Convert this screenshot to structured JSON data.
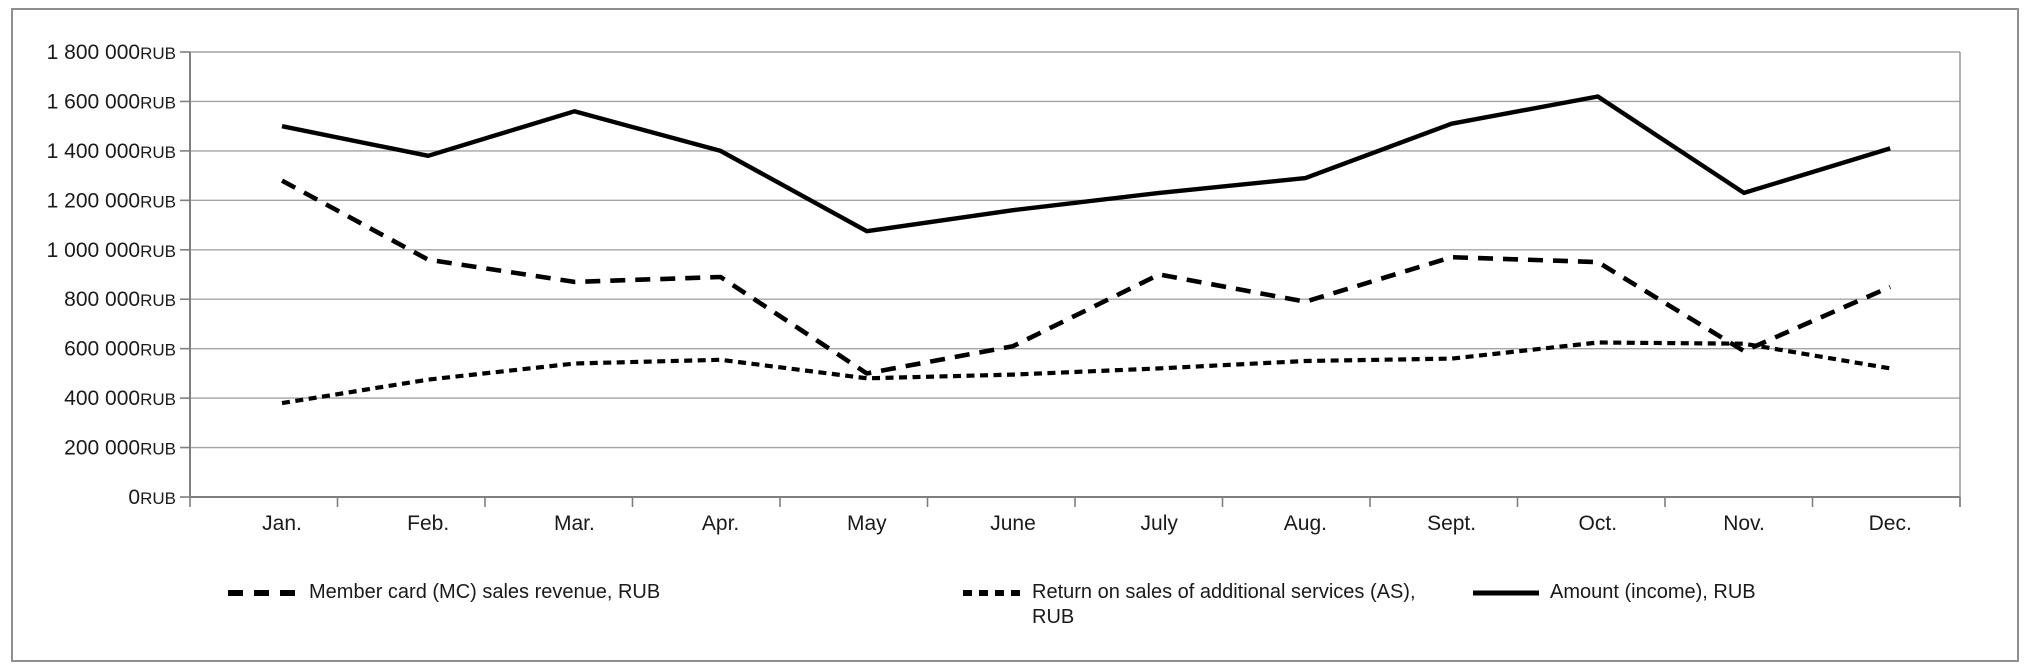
{
  "chart_data": {
    "type": "line",
    "title": "",
    "xlabel": "",
    "ylabel": "",
    "unit_suffix": "RUB",
    "grid": true,
    "legend_position": "bottom",
    "ylim": [
      0,
      1800000
    ],
    "y_tick_step": 200000,
    "y_ticks": [
      0,
      200000,
      400000,
      600000,
      800000,
      1000000,
      1200000,
      1400000,
      1600000,
      1800000
    ],
    "y_tick_labels": [
      "0RUB",
      "200 000RUB",
      "400 000RUB",
      "600 000RUB",
      "800 000RUB",
      "1 000 000RUB",
      "1 200 000RUB",
      "1 400 000RUB",
      "1 600 000RUB",
      "1 800 000RUB"
    ],
    "categories": [
      "Jan.",
      "Feb.",
      "Mar.",
      "Apr.",
      "May",
      "June",
      "July",
      "Aug.",
      "Sept.",
      "Oct.",
      "Nov.",
      "Dec."
    ],
    "series": [
      {
        "id": "member-card-sales-revenue",
        "name": "Member card (MC) sales revenue, RUB",
        "style": "long-dash",
        "color": "#000000",
        "values": [
          1280000,
          960000,
          870000,
          890000,
          500000,
          610000,
          900000,
          790000,
          970000,
          950000,
          590000,
          850000
        ]
      },
      {
        "id": "return-on-additional-services",
        "name": "Return on sales of additional services (AS), RUB",
        "style": "short-dash",
        "color": "#000000",
        "values": [
          380000,
          475000,
          540000,
          555000,
          480000,
          495000,
          520000,
          550000,
          560000,
          625000,
          620000,
          520000
        ]
      },
      {
        "id": "amount-income",
        "name": "Amount (income), RUB",
        "style": "solid",
        "color": "#000000",
        "values": [
          1500000,
          1380000,
          1560000,
          1400000,
          1075000,
          1160000,
          1230000,
          1290000,
          1510000,
          1620000,
          1230000,
          1410000
        ]
      }
    ]
  },
  "legend": {
    "items": [
      {
        "name": "Member card (MC) sales revenue, RUB",
        "style": "long-dash",
        "lines": [
          "Member card (MC) sales revenue, RUB"
        ]
      },
      {
        "name": "Return on sales of additional services (AS), RUB",
        "style": "short-dash",
        "lines": [
          "Return on sales of additional services (AS),",
          "RUB"
        ]
      },
      {
        "name": "Amount (income), RUB",
        "style": "solid",
        "lines": [
          "Amount (income), RUB"
        ]
      }
    ]
  }
}
